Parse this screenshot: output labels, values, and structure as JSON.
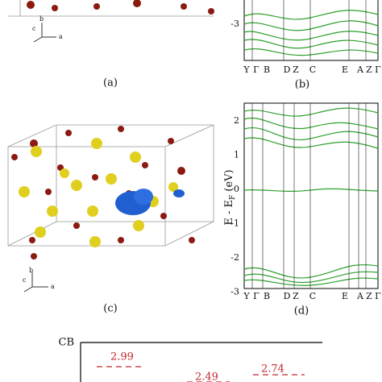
{
  "panel_a": {
    "axes": [
      "c",
      "b",
      "a"
    ],
    "caption": "(a)"
  },
  "panel_b": {
    "yticks": [
      "-3"
    ],
    "kpoints": [
      "Y",
      "Γ",
      "B",
      "D",
      "Z",
      "C",
      "E",
      "A",
      "Z",
      "Γ"
    ],
    "caption": "(b)"
  },
  "panel_c": {
    "axes": [
      "b",
      "c",
      "a"
    ],
    "caption": "(c)"
  },
  "panel_d": {
    "ylabel": "E - E",
    "ylabel_sub": "F",
    "ylabel_unit": " (eV)",
    "yticks": [
      "2",
      "1",
      "0",
      "-1",
      "-2",
      "-3"
    ],
    "kpoints": [
      "Y",
      "Γ",
      "B",
      "D",
      "Z",
      "C",
      "E",
      "A",
      "Z",
      "Γ"
    ],
    "caption": "(d)"
  },
  "panel_e": {
    "level": "CB",
    "values": [
      "2.99",
      "2.49",
      "2.74"
    ]
  }
}
